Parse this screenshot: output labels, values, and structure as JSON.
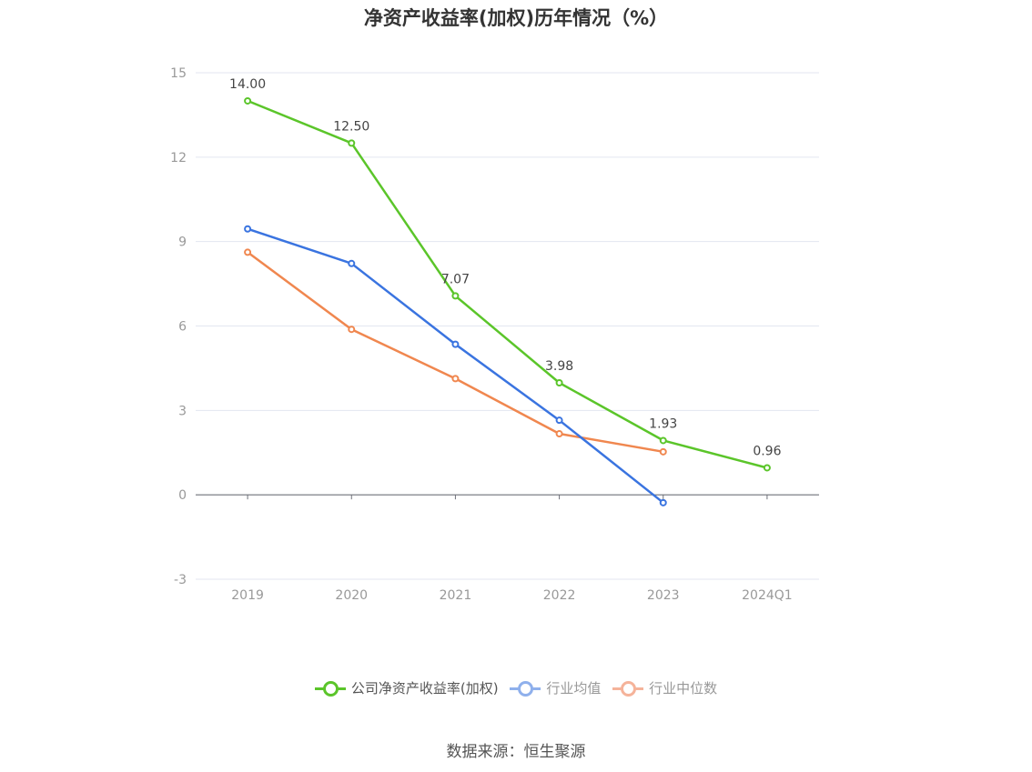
{
  "chart_data": {
    "type": "line",
    "title": "净资产收益率(加权)历年情况（%）",
    "categories": [
      "2019",
      "2020",
      "2021",
      "2022",
      "2023",
      "2024Q1"
    ],
    "ylim": [
      -3,
      15
    ],
    "yticks": [
      "15",
      "12",
      "9",
      "6",
      "3",
      "0",
      "-3"
    ],
    "grid": true,
    "legend_position": "bottom-center",
    "series": [
      {
        "name": "公司净资产收益率(加权)",
        "color": "#5bc52a",
        "values": [
          14.0,
          12.5,
          7.07,
          3.98,
          1.93,
          0.96
        ],
        "labels": [
          "14.00",
          "12.50",
          "7.07",
          "3.98",
          "1.93",
          "0.96"
        ]
      },
      {
        "name": "行业均值",
        "color": "#3a74e0",
        "values": [
          9.45,
          8.22,
          5.35,
          2.65,
          -0.28,
          null
        ]
      },
      {
        "name": "行业中位数",
        "color": "#f0874f",
        "values": [
          8.62,
          5.88,
          4.13,
          2.17,
          1.53,
          null
        ]
      }
    ]
  },
  "legend": {
    "items": [
      {
        "label": "公司净资产收益率(加权)",
        "color": "#5bc52a"
      },
      {
        "label": "行业均值",
        "color": "#8fb0ec"
      },
      {
        "label": "行业中位数",
        "color": "#f5b39a"
      }
    ]
  },
  "source": "数据来源：恒生聚源"
}
